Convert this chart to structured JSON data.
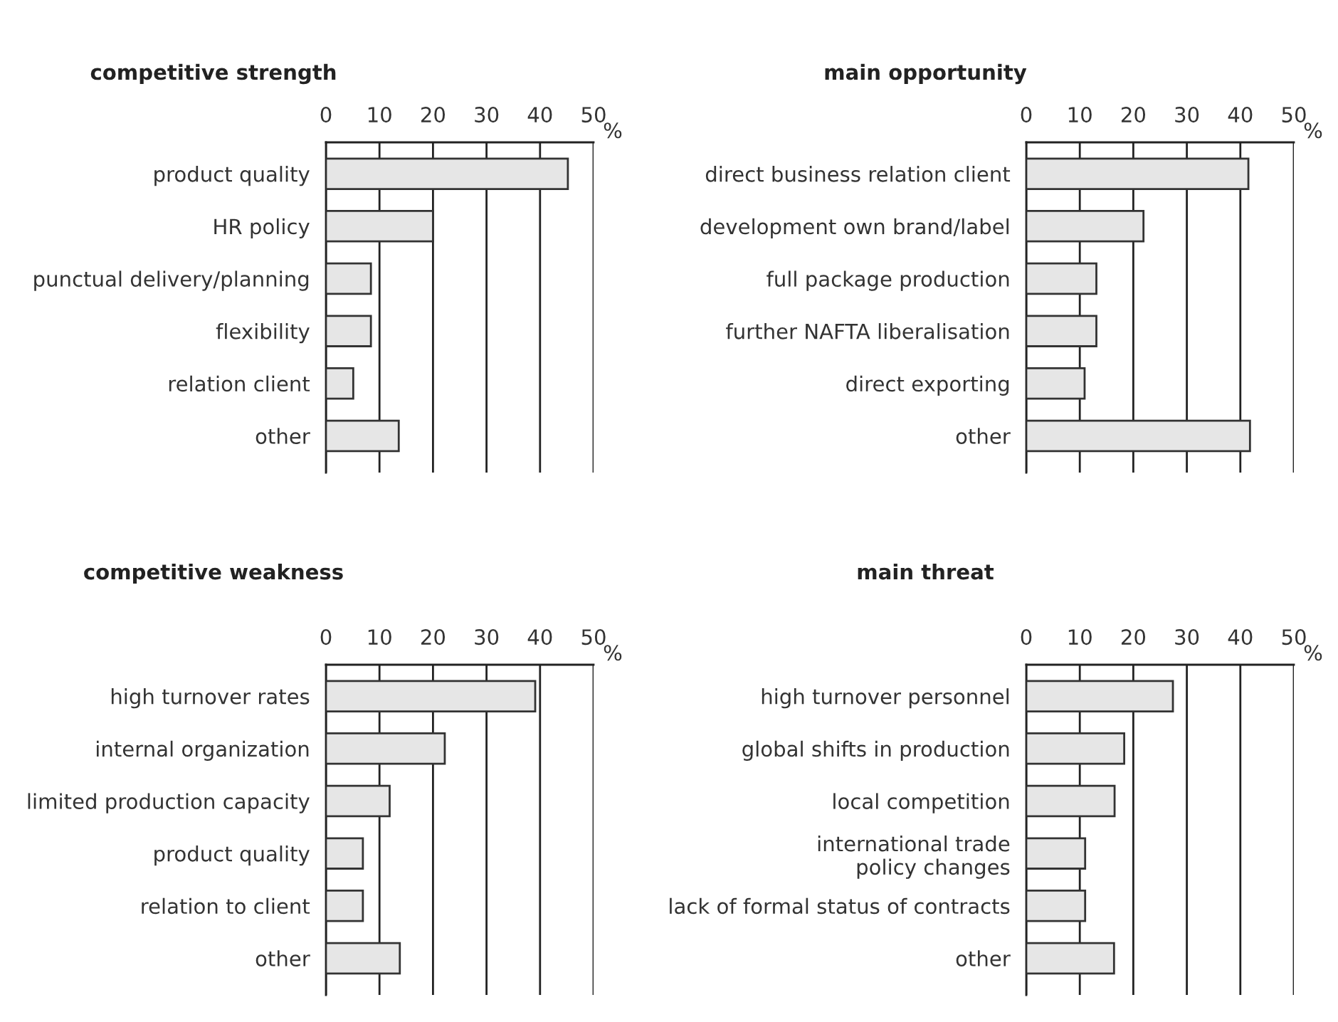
{
  "chart_data": [
    {
      "type": "bar",
      "orientation": "horizontal",
      "title": "competitive strength",
      "categories": [
        "product quality",
        "HR policy",
        "punctual delivery/planning",
        "flexibility",
        "relation client",
        "other"
      ],
      "values": [
        45.2,
        20.0,
        8.4,
        8.4,
        5.1,
        13.6
      ],
      "color": "#e6e6e6",
      "xlim": [
        0,
        50
      ],
      "xticks": [
        0,
        10,
        20,
        30,
        40,
        50
      ],
      "xlabel": "%",
      "grid": "x"
    },
    {
      "type": "bar",
      "orientation": "horizontal",
      "title": "main opportunity",
      "categories": [
        "direct business relation client",
        "development own brand/label",
        "full package production",
        "further NAFTA liberalisation",
        "direct exporting",
        "other"
      ],
      "values": [
        41.5,
        21.9,
        13.1,
        13.1,
        10.9,
        41.8
      ],
      "color": "#e6e6e6",
      "xlim": [
        0,
        50
      ],
      "xticks": [
        0,
        10,
        20,
        30,
        40,
        50
      ],
      "xlabel": "%",
      "grid": "x"
    },
    {
      "type": "bar",
      "orientation": "horizontal",
      "title": "competitive weakness",
      "categories": [
        "high turnover rates",
        "internal organization",
        "limited production capacity",
        "product quality",
        "relation to client",
        "other"
      ],
      "values": [
        39.1,
        22.2,
        11.9,
        6.9,
        6.9,
        13.8
      ],
      "color": "#e6e6e6",
      "xlim": [
        0,
        50
      ],
      "xticks": [
        0,
        10,
        20,
        30,
        40,
        50
      ],
      "xlabel": "%",
      "grid": "x"
    },
    {
      "type": "bar",
      "orientation": "horizontal",
      "title": "main threat",
      "categories": [
        "high turnover personnel",
        "global shifts in production",
        "local competition",
        "international trade\npolicy changes",
        "lack of formal status of contracts",
        "other"
      ],
      "values": [
        27.4,
        18.3,
        16.5,
        11.0,
        11.0,
        16.4
      ],
      "color": "#e6e6e6",
      "xlim": [
        0,
        50
      ],
      "xticks": [
        0,
        10,
        20,
        30,
        40,
        50
      ],
      "xlabel": "%",
      "grid": "x"
    }
  ]
}
